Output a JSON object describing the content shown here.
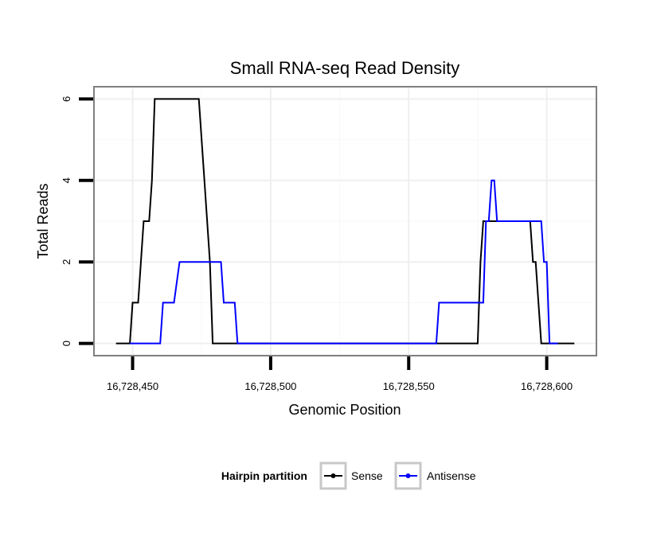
{
  "chart_data": {
    "type": "line",
    "title": "Small RNA-seq Read Density",
    "xlabel": "Genomic Position",
    "ylabel": "Total Reads",
    "xlim": [
      16728436,
      16728618
    ],
    "ylim": [
      -0.3,
      6.3
    ],
    "x_ticks": [
      16728450,
      16728500,
      16728550,
      16728600
    ],
    "x_tick_labels": [
      "16,728,450",
      "16,728,500",
      "16,728,550",
      "16,728,600"
    ],
    "y_ticks": [
      0,
      2,
      4,
      6
    ],
    "y_tick_labels": [
      "0",
      "2",
      "4",
      "6"
    ],
    "grid": true,
    "legend": {
      "title": "Hairpin partition",
      "position": "bottom"
    },
    "series": [
      {
        "name": "Sense",
        "color": "#000000",
        "points": [
          [
            16728444,
            0
          ],
          [
            16728449,
            0
          ],
          [
            16728450,
            1
          ],
          [
            16728452,
            1
          ],
          [
            16728454,
            3
          ],
          [
            16728456,
            3
          ],
          [
            16728457,
            4
          ],
          [
            16728458,
            6
          ],
          [
            16728474,
            6
          ],
          [
            16728476,
            4
          ],
          [
            16728478,
            2
          ],
          [
            16728479,
            0
          ],
          [
            16728575,
            0
          ],
          [
            16728576,
            2
          ],
          [
            16728577,
            3
          ],
          [
            16728594,
            3
          ],
          [
            16728595,
            2
          ],
          [
            16728596,
            2
          ],
          [
            16728597,
            1
          ],
          [
            16728598,
            0
          ],
          [
            16728610,
            0
          ]
        ]
      },
      {
        "name": "Antisense",
        "color": "#0000ff",
        "points": [
          [
            16728449,
            0
          ],
          [
            16728460,
            0
          ],
          [
            16728461,
            1
          ],
          [
            16728465,
            1
          ],
          [
            16728467,
            2
          ],
          [
            16728482,
            2
          ],
          [
            16728483,
            1
          ],
          [
            16728487,
            1
          ],
          [
            16728488,
            0
          ],
          [
            16728560,
            0
          ],
          [
            16728561,
            1
          ],
          [
            16728577,
            1
          ],
          [
            16728578,
            3
          ],
          [
            16728579,
            3
          ],
          [
            16728580,
            4
          ],
          [
            16728581,
            4
          ],
          [
            16728582,
            3
          ],
          [
            16728598,
            3
          ],
          [
            16728599,
            2
          ],
          [
            16728600,
            2
          ],
          [
            16728601,
            0
          ],
          [
            16728604,
            0
          ]
        ]
      }
    ]
  }
}
